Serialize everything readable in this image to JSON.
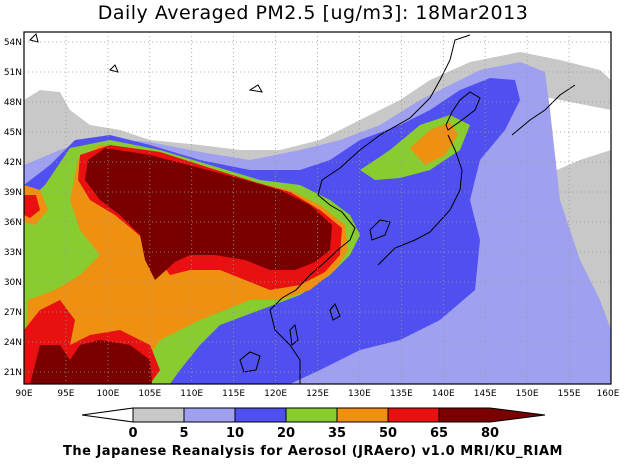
{
  "title": "Daily Averaged PM2.5 [ug/m3]: 18Mar2013",
  "footer": "The Japanese Reanalysis for Aerosol (JRAero) v1.0 MRI/KU_RIAM",
  "axes": {
    "lon_ticks": [
      "90E",
      "95E",
      "100E",
      "105E",
      "110E",
      "115E",
      "120E",
      "125E",
      "130E",
      "135E",
      "140E",
      "145E",
      "150E",
      "155E",
      "160E"
    ],
    "lat_ticks": [
      "54N",
      "51N",
      "48N",
      "45N",
      "42N",
      "39N",
      "36N",
      "33N",
      "30N",
      "27N",
      "24N",
      "21N"
    ]
  },
  "colorbar": {
    "labels": [
      "0",
      "5",
      "10",
      "20",
      "35",
      "50",
      "65",
      "80"
    ],
    "colors": [
      "#ffffff",
      "#c8c8c8",
      "#a0a0f0",
      "#5050f0",
      "#88cc30",
      "#f09010",
      "#e81010",
      "#7a0000"
    ]
  },
  "map_colors": {
    "lt5": "#ffffff",
    "c5_10": "#c8c8c8",
    "c10_20": "#a0a0f0",
    "c20_35": "#5050f0",
    "c35_50": "#88cc30",
    "c50_65": "#f09010",
    "c65_80": "#e81010",
    "gt80": "#7a0000"
  }
}
